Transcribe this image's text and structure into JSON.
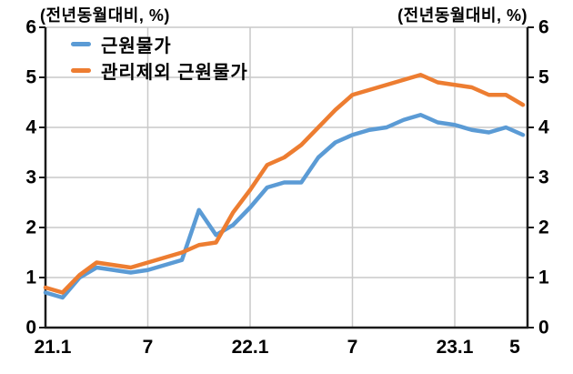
{
  "titles": {
    "left": "(전년동월대비, %)",
    "right": "(전년동월대비, %)"
  },
  "legend": {
    "items": [
      {
        "label": "근원물가",
        "color": "#5B9BD5"
      },
      {
        "label": "관리제외 근원물가",
        "color": "#ED7D31"
      }
    ]
  },
  "colors": {
    "series_core": "#5B9BD5",
    "series_core_ex_admin": "#ED7D31",
    "gridline": "#c9c9c9",
    "axis": "#1a1a1a",
    "text": "#000000",
    "background": "#ffffff"
  },
  "chart_data": {
    "type": "line",
    "title": "(전년동월대비, %)",
    "xlabel": "",
    "ylabel": "",
    "ylim": [
      0,
      6
    ],
    "grid": true,
    "legend_position": "top-left-inside",
    "y_ticks": [
      "0",
      "1",
      "2",
      "3",
      "4",
      "5",
      "6"
    ],
    "y_tick_sides": "both",
    "h_gridlines_at": [
      1,
      2,
      3,
      4,
      5,
      6
    ],
    "x_tick_labels": [
      "21.1",
      "7",
      "22.1",
      "7",
      "23.1",
      "5"
    ],
    "x_tick_month_indices": [
      0,
      6,
      12,
      18,
      24,
      28
    ],
    "v_gridlines_at_month_indices": [
      6,
      12,
      18,
      24
    ],
    "x": [
      "21.1",
      "21.2",
      "21.3",
      "21.4",
      "21.5",
      "21.6",
      "21.7",
      "21.8",
      "21.9",
      "21.10",
      "21.11",
      "21.12",
      "22.1",
      "22.2",
      "22.3",
      "22.4",
      "22.5",
      "22.6",
      "22.7",
      "22.8",
      "22.9",
      "22.10",
      "22.11",
      "22.12",
      "23.1",
      "23.2",
      "23.3",
      "23.4",
      "23.5"
    ],
    "series": [
      {
        "name": "근원물가",
        "color": "#5B9BD5",
        "values": [
          0.7,
          0.6,
          1.0,
          1.2,
          1.15,
          1.1,
          1.15,
          1.25,
          1.35,
          2.35,
          1.85,
          2.05,
          2.4,
          2.8,
          2.9,
          2.9,
          3.4,
          3.7,
          3.85,
          3.95,
          4.0,
          4.15,
          4.25,
          4.1,
          4.05,
          3.95,
          3.9,
          4.0,
          3.85
        ]
      },
      {
        "name": "관리제외 근원물가",
        "color": "#ED7D31",
        "values": [
          0.8,
          0.7,
          1.05,
          1.3,
          1.25,
          1.2,
          1.3,
          1.4,
          1.5,
          1.65,
          1.7,
          2.3,
          2.75,
          3.25,
          3.4,
          3.65,
          4.0,
          4.35,
          4.65,
          4.75,
          4.85,
          4.95,
          5.05,
          4.9,
          4.85,
          4.8,
          4.65,
          4.65,
          4.45
        ]
      }
    ]
  }
}
